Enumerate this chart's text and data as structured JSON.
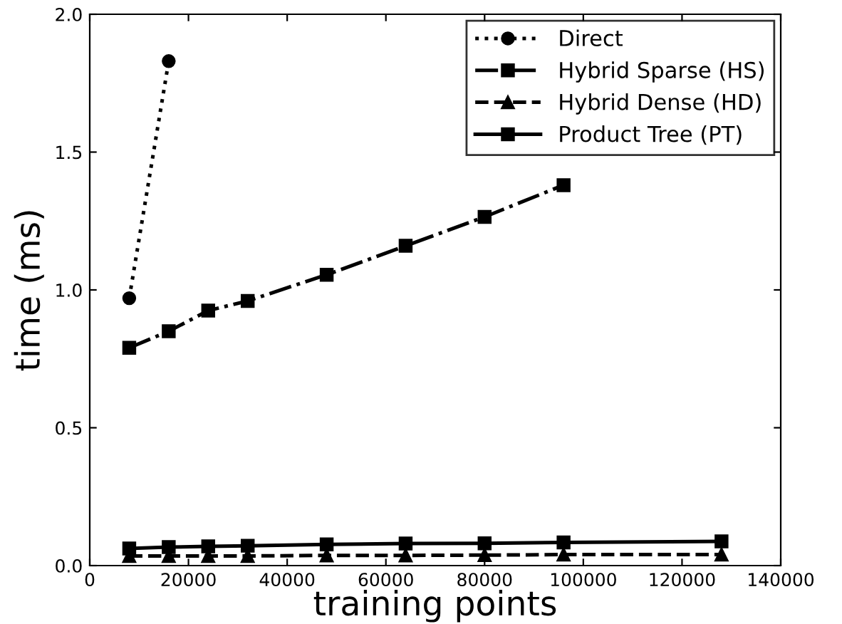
{
  "chart_data": {
    "type": "line",
    "xlabel": "training points",
    "ylabel": "time (ms)",
    "x": [
      8000,
      16000,
      24000,
      32000,
      48000,
      64000,
      80000,
      96000,
      128000
    ],
    "xlim": [
      0,
      140000
    ],
    "xticks": [
      0,
      20000,
      40000,
      60000,
      80000,
      100000,
      120000,
      140000
    ],
    "ylim": [
      0,
      2.0
    ],
    "yticks": [
      {
        "value": 0,
        "label": "0.0"
      },
      0.5,
      {
        "value": 1,
        "label": "1.0"
      },
      1.5,
      {
        "value": 2,
        "label": "2.0"
      }
    ],
    "grid": false,
    "legend": "top right",
    "series": [
      {
        "name": "Direct",
        "color": "#000000",
        "marker": "circle",
        "line_style": "dotted",
        "values": [
          0.97,
          1.83,
          null,
          null,
          null,
          null,
          null,
          null,
          null
        ]
      },
      {
        "name": "Hybrid Sparse (HS)",
        "color": "#000000",
        "marker": "square",
        "line_style": "dashdot",
        "values": [
          0.79,
          0.85,
          0.925,
          0.96,
          1.055,
          1.16,
          1.265,
          1.38,
          null
        ]
      },
      {
        "name": "Hybrid Dense (HD)",
        "color": "#000000",
        "marker": "triangle",
        "line_style": "dashed",
        "values": [
          0.035,
          0.035,
          0.035,
          0.035,
          0.037,
          0.037,
          0.038,
          0.04,
          0.04
        ]
      },
      {
        "name": "Product Tree (PT)",
        "color": "#000000",
        "marker": "square",
        "line_style": "solid",
        "values": [
          0.062,
          0.067,
          0.07,
          0.072,
          0.077,
          0.08,
          0.081,
          0.084,
          0.088
        ]
      }
    ]
  }
}
